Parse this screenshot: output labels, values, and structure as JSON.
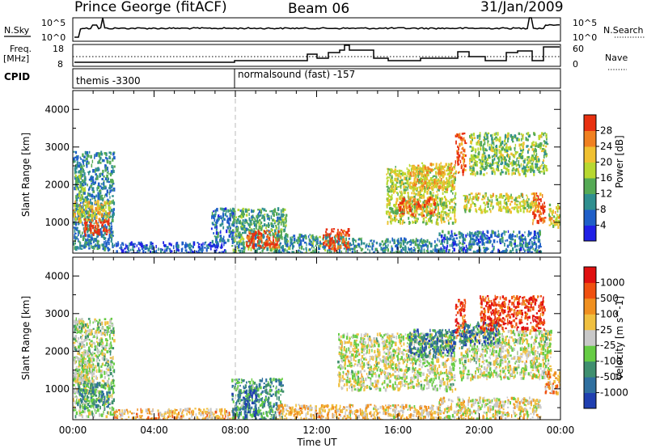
{
  "header": {
    "station": "Prince George (fitACF)",
    "beam": "Beam 06",
    "date": "31/Jan/2009"
  },
  "panels": {
    "nsky": {
      "label": "N.Sky",
      "tick_top": "10^5",
      "tick_bottom": "10^0",
      "right_label": "N.Search",
      "right_tick_top": "10^5",
      "right_tick_bottom": "10^0"
    },
    "freq": {
      "label_top": "Freq.",
      "label_bottom": "[MHz]",
      "tick_top": "18",
      "tick_bottom": "8",
      "right_label": "Nave",
      "right_tick_top": "60",
      "right_tick_bottom": "0"
    },
    "cpid": {
      "label": "CPID",
      "segments": [
        {
          "text": "themis -3300",
          "start_hour": 0
        },
        {
          "text": "normalsound (fast) -157",
          "start_hour": 8
        }
      ]
    }
  },
  "chart_data": [
    {
      "type": "heatmap",
      "name": "power",
      "ylabel": "Slant Range [km]",
      "xlabel": "",
      "xlim": [
        0,
        24
      ],
      "ylim": [
        180,
        4500
      ],
      "yticks": [
        1000,
        2000,
        3000,
        4000
      ],
      "colorbar": {
        "label": "Power [dB]",
        "min": 0,
        "max": 32,
        "ticks": [
          "28",
          "24",
          "20",
          "16",
          "12",
          "8",
          "4"
        ],
        "colors": [
          "#2020e6",
          "#1f5fc8",
          "#2f8f8f",
          "#55aa55",
          "#b8d830",
          "#f0c030",
          "#f08020",
          "#e83010"
        ]
      },
      "regions": [
        {
          "t0": 0.0,
          "t1": 2.0,
          "r0": 300,
          "r1": 2900,
          "level": 0.3
        },
        {
          "t0": 0.0,
          "t1": 1.8,
          "r0": 1050,
          "r1": 1600,
          "level": 0.65
        },
        {
          "t0": 0.5,
          "t1": 1.8,
          "r0": 700,
          "r1": 1100,
          "level": 0.95
        },
        {
          "t0": 0.1,
          "t1": 0.6,
          "r0": 1600,
          "r1": 2300,
          "level": 0.45
        },
        {
          "t0": 2.0,
          "t1": 7.5,
          "r0": 180,
          "r1": 500,
          "level": 0.15
        },
        {
          "t0": 6.8,
          "t1": 8.0,
          "r0": 500,
          "r1": 1400,
          "level": 0.25
        },
        {
          "t0": 7.8,
          "t1": 10.5,
          "r0": 180,
          "r1": 1400,
          "level": 0.4
        },
        {
          "t0": 8.5,
          "t1": 10.2,
          "r0": 350,
          "r1": 800,
          "level": 0.95
        },
        {
          "t0": 10.0,
          "t1": 13.5,
          "r0": 180,
          "r1": 700,
          "level": 0.35
        },
        {
          "t0": 12.3,
          "t1": 13.6,
          "r0": 300,
          "r1": 850,
          "level": 0.95
        },
        {
          "t0": 13.5,
          "t1": 18.0,
          "r0": 180,
          "r1": 600,
          "level": 0.3
        },
        {
          "t0": 15.4,
          "t1": 18.8,
          "r0": 1000,
          "r1": 2500,
          "level": 0.55
        },
        {
          "t0": 16.0,
          "t1": 17.8,
          "r0": 1200,
          "r1": 1700,
          "level": 0.85
        },
        {
          "t0": 16.5,
          "t1": 18.8,
          "r0": 1900,
          "r1": 2600,
          "level": 0.7
        },
        {
          "t0": 18.0,
          "t1": 23.0,
          "r0": 180,
          "r1": 800,
          "level": 0.25
        },
        {
          "t0": 18.8,
          "t1": 19.3,
          "r0": 2300,
          "r1": 3400,
          "level": 0.9
        },
        {
          "t0": 19.2,
          "t1": 22.8,
          "r0": 1300,
          "r1": 1800,
          "level": 0.6
        },
        {
          "t0": 19.5,
          "t1": 23.3,
          "r0": 2300,
          "r1": 3400,
          "level": 0.5
        },
        {
          "t0": 22.6,
          "t1": 23.2,
          "r0": 1000,
          "r1": 1800,
          "level": 0.9
        },
        {
          "t0": 23.4,
          "t1": 24.0,
          "r0": 900,
          "r1": 1500,
          "level": 0.6
        }
      ]
    },
    {
      "type": "heatmap",
      "name": "velocity",
      "ylabel": "Slant Range [km]",
      "xlabel": "Time UT",
      "xlim": [
        0,
        24
      ],
      "ylim": [
        180,
        4500
      ],
      "xticks": [
        "00:00",
        "04:00",
        "08:00",
        "12:00",
        "16:00",
        "20:00",
        "00:00"
      ],
      "yticks": [
        1000,
        2000,
        3000,
        4000
      ],
      "colorbar": {
        "label": "Velocity [m s^-1]",
        "ticks": [
          "1000",
          "500",
          "100",
          "25",
          "-25",
          "-100",
          "-500",
          "-1000"
        ],
        "colors": [
          "#1f3fb0",
          "#2f6f9f",
          "#3f8f6f",
          "#66cc44",
          "#c8c8c8",
          "#f0c040",
          "#f09020",
          "#f05010",
          "#e01010"
        ]
      },
      "regions": [
        {
          "t0": 0.0,
          "t1": 2.0,
          "r0": 300,
          "r1": 2900,
          "level": 0.45
        },
        {
          "t0": 0.2,
          "t1": 1.8,
          "r0": 500,
          "r1": 1200,
          "level": 0.28
        },
        {
          "t0": 0.0,
          "t1": 1.0,
          "r0": 1200,
          "r1": 2000,
          "level": 0.5
        },
        {
          "t0": 2.0,
          "t1": 8.0,
          "r0": 180,
          "r1": 500,
          "level": 0.65
        },
        {
          "t0": 7.8,
          "t1": 10.3,
          "r0": 180,
          "r1": 1300,
          "level": 0.28
        },
        {
          "t0": 8.3,
          "t1": 9.0,
          "r0": 300,
          "r1": 1000,
          "level": 0.1
        },
        {
          "t0": 10.0,
          "t1": 13.5,
          "r0": 180,
          "r1": 600,
          "level": 0.62
        },
        {
          "t0": 13.5,
          "t1": 18.0,
          "r0": 180,
          "r1": 600,
          "level": 0.6
        },
        {
          "t0": 13.0,
          "t1": 18.8,
          "r0": 1000,
          "r1": 2500,
          "level": 0.5
        },
        {
          "t0": 16.5,
          "t1": 18.8,
          "r0": 1900,
          "r1": 2600,
          "level": 0.2
        },
        {
          "t0": 18.0,
          "t1": 23.0,
          "r0": 200,
          "r1": 800,
          "level": 0.55
        },
        {
          "t0": 18.8,
          "t1": 19.3,
          "r0": 2400,
          "r1": 3400,
          "level": 0.9
        },
        {
          "t0": 19.0,
          "t1": 23.5,
          "r0": 1300,
          "r1": 2600,
          "level": 0.5
        },
        {
          "t0": 19.0,
          "t1": 21.0,
          "r0": 2200,
          "r1": 2800,
          "level": 0.2
        },
        {
          "t0": 20.0,
          "t1": 23.2,
          "r0": 2600,
          "r1": 3500,
          "level": 0.88
        },
        {
          "t0": 23.2,
          "t1": 24.0,
          "r0": 900,
          "r1": 1500,
          "level": 0.7
        }
      ]
    }
  ]
}
